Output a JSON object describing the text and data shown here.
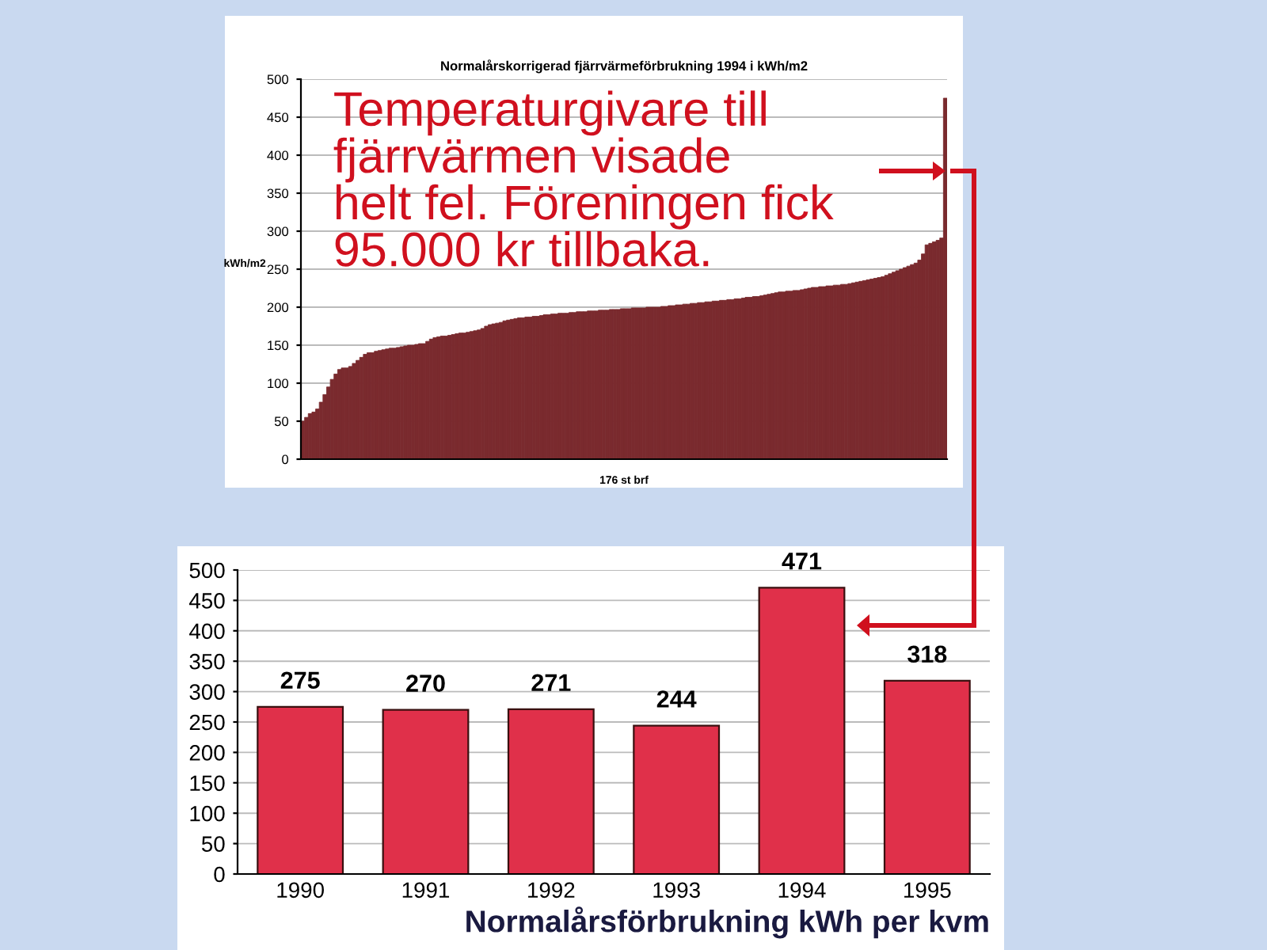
{
  "chart_data": [
    {
      "type": "bar",
      "title": "Normalårskorrigerad fjärrvärmeförbrukning 1994 i kWh/m2",
      "ylabel": "kWh/m2",
      "xlabel": "176 st brf",
      "categories": [
        null,
        null,
        null,
        null,
        null,
        null,
        null,
        null,
        null,
        null,
        null,
        null,
        null,
        null,
        null,
        null,
        null,
        null,
        null,
        null,
        null,
        null,
        null,
        null,
        null,
        null,
        null,
        null,
        null,
        null,
        null,
        null,
        null,
        null,
        null,
        null,
        null,
        null,
        null,
        null,
        null,
        null,
        null,
        null,
        null,
        null,
        null,
        null,
        null,
        null,
        null,
        null,
        null,
        null,
        null,
        null,
        null,
        null,
        null,
        null,
        null,
        null,
        null,
        null,
        null,
        null,
        null,
        null,
        null,
        null,
        null,
        null,
        null,
        null,
        null,
        null,
        null,
        null,
        null,
        null,
        null,
        null,
        null,
        null,
        null,
        null,
        null,
        null,
        null,
        null,
        null,
        null,
        null,
        null,
        null,
        null,
        null,
        null,
        null,
        null,
        null,
        null,
        null,
        null,
        null,
        null,
        null,
        null,
        null,
        null,
        null,
        null,
        null,
        null,
        null,
        null,
        null,
        null,
        null,
        null,
        null,
        null,
        null,
        null,
        null,
        null,
        null,
        null,
        null,
        null,
        null,
        null,
        null,
        null,
        null,
        null,
        null,
        null,
        null,
        null,
        null,
        null,
        null,
        null,
        null,
        null,
        null,
        null,
        null,
        null,
        null,
        null,
        null,
        null,
        null,
        null,
        null,
        null,
        null,
        null,
        null,
        null,
        null,
        null,
        null,
        null,
        null,
        null,
        null,
        null,
        null,
        null,
        null,
        null,
        null,
        null
      ],
      "values": [
        50,
        55,
        60,
        62,
        66,
        75,
        85,
        95,
        105,
        112,
        118,
        120,
        120,
        122,
        126,
        130,
        134,
        138,
        140,
        140,
        142,
        143,
        144,
        145,
        146,
        146,
        147,
        148,
        149,
        150,
        150,
        151,
        152,
        152,
        155,
        158,
        160,
        161,
        162,
        162,
        163,
        164,
        165,
        166,
        166,
        167,
        168,
        169,
        170,
        172,
        175,
        177,
        178,
        179,
        180,
        182,
        183,
        184,
        185,
        186,
        186,
        187,
        187,
        188,
        188,
        189,
        190,
        190,
        191,
        191,
        192,
        192,
        192,
        193,
        193,
        194,
        194,
        194,
        195,
        195,
        195,
        196,
        196,
        196,
        197,
        197,
        197,
        198,
        198,
        198,
        199,
        199,
        199,
        199,
        200,
        200,
        200,
        200,
        201,
        201,
        202,
        202,
        203,
        203,
        204,
        204,
        205,
        205,
        206,
        206,
        207,
        207,
        208,
        208,
        209,
        209,
        210,
        210,
        211,
        211,
        212,
        213,
        213,
        214,
        214,
        215,
        216,
        217,
        218,
        219,
        220,
        220,
        221,
        221,
        222,
        222,
        223,
        224,
        225,
        226,
        226,
        227,
        227,
        228,
        228,
        229,
        229,
        230,
        230,
        231,
        232,
        233,
        234,
        235,
        236,
        237,
        238,
        239,
        240,
        242,
        244,
        246,
        248,
        250,
        252,
        254,
        256,
        258,
        262,
        270,
        282,
        284,
        286,
        288,
        291,
        475
      ],
      "color": "#7a2a2e",
      "ylim": [
        0,
        500
      ],
      "yticks": [
        0,
        50,
        100,
        150,
        200,
        250,
        300,
        350,
        400,
        450,
        500
      ],
      "grid": "y",
      "annotations": [
        "Temperaturgivare till\nfjärrvärmen visade\nhelt fel. Föreningen fick\n95.000 kr tillbaka."
      ]
    },
    {
      "type": "bar",
      "xlabel": "Normalårsförbrukning kWh per kvm",
      "categories": [
        "1990",
        "1991",
        "1992",
        "1993",
        "1994",
        "1995"
      ],
      "values": [
        275,
        270,
        271,
        244,
        471,
        318
      ],
      "color": "#e0304a",
      "data_labels": true,
      "ylim": [
        0,
        500
      ],
      "yticks": [
        0,
        50,
        100,
        150,
        200,
        250,
        300,
        350,
        400,
        450,
        500
      ],
      "grid": "y"
    }
  ]
}
